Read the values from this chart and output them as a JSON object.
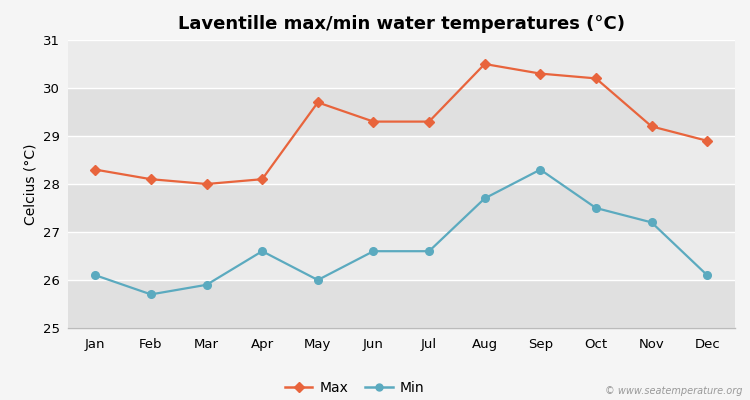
{
  "months": [
    "Jan",
    "Feb",
    "Mar",
    "Apr",
    "May",
    "Jun",
    "Jul",
    "Aug",
    "Sep",
    "Oct",
    "Nov",
    "Dec"
  ],
  "max_temps": [
    28.3,
    28.1,
    28.0,
    28.1,
    29.7,
    29.3,
    29.3,
    30.5,
    30.3,
    30.2,
    29.2,
    28.9
  ],
  "min_temps": [
    26.1,
    25.7,
    25.9,
    26.6,
    26.0,
    26.6,
    26.6,
    27.7,
    28.3,
    27.5,
    27.2,
    26.1
  ],
  "max_color": "#E8643C",
  "min_color": "#5BAABF",
  "title": "Laventille max/min water temperatures (°C)",
  "ylabel": "Celcius (°C)",
  "ylim": [
    25,
    31
  ],
  "yticks": [
    25,
    26,
    27,
    28,
    29,
    30,
    31
  ],
  "bg_color": "#f5f5f5",
  "band_light": "#ebebeb",
  "band_dark": "#e0e0e0",
  "grid_color": "#ffffff",
  "watermark": "© www.seatemperature.org",
  "legend_max": "Max",
  "legend_min": "Min",
  "title_fontsize": 13,
  "label_fontsize": 10,
  "tick_fontsize": 9.5
}
